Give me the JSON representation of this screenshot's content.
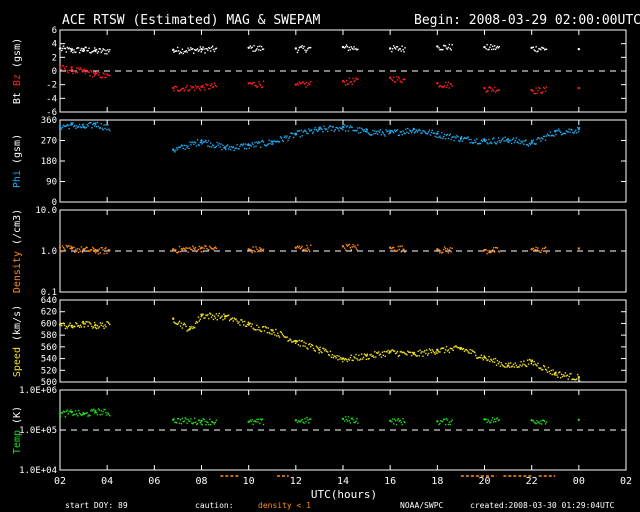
{
  "header": {
    "title": "ACE RTSW (Estimated) MAG & SWEPAM",
    "begin": "Begin: 2008-03-29 02:00:00UTC"
  },
  "footer": {
    "start_doy_label": "start DOY:",
    "start_doy": "89",
    "caution_label": "caution:",
    "caution_text": "density < 1",
    "source": "NOAA/SWPC",
    "created": "created:2008-03-30 01:29:04UTC"
  },
  "colors": {
    "bt": "#ffffff",
    "bz": "#ff2020",
    "phi": "#22aaee",
    "density": "#ff8c1a",
    "speed": "#f0e020",
    "temp": "#20dd20",
    "frame": "#ffffff",
    "background": "#000000"
  },
  "chart_data": [
    {
      "type": "scatter",
      "ylabel_parts": [
        {
          "text": "Bt",
          "color": "#ffffff"
        },
        {
          "text": "Bz",
          "color": "#ff2020"
        },
        {
          "text": "(gsm)",
          "color": "#ffffff"
        }
      ],
      "ylim": [
        -6,
        6
      ],
      "yticks": [
        "6",
        "4",
        "2",
        "0",
        "-2",
        "-4",
        "-6"
      ],
      "ytick_values": [
        6,
        4,
        2,
        0,
        -2,
        -4,
        -6
      ],
      "dashed_y": 0,
      "series": [
        {
          "name": "Bt",
          "color": "#ffffff",
          "x": [
            2.0,
            2.5,
            3.0,
            3.5,
            6.8,
            8,
            10,
            12,
            14,
            16,
            18,
            20,
            22,
            24
          ],
          "y": [
            3.3,
            3.1,
            3.2,
            3.0,
            3.1,
            3.2,
            3.4,
            3.3,
            3.5,
            3.3,
            3.6,
            3.5,
            3.4,
            3.2
          ]
        },
        {
          "name": "Bz",
          "color": "#ff2020",
          "x": [
            2.0,
            2.5,
            3.0,
            3.5,
            6.8,
            8,
            10,
            12,
            14,
            16,
            18,
            20,
            22,
            24
          ],
          "y": [
            0.5,
            0.2,
            0.0,
            -0.4,
            -2.5,
            -2.3,
            -1.8,
            -2.0,
            -1.5,
            -1.0,
            -1.8,
            -2.5,
            -2.8,
            -2.5
          ]
        }
      ]
    },
    {
      "type": "scatter",
      "ylabel_parts": [
        {
          "text": "Phi",
          "color": "#22aaee"
        },
        {
          "text": "(gsm)",
          "color": "#ffffff"
        }
      ],
      "ylim": [
        0,
        360
      ],
      "yticks": [
        "360",
        "270",
        "180",
        "90",
        "0"
      ],
      "ytick_values": [
        360,
        270,
        180,
        90,
        0
      ],
      "series": [
        {
          "name": "Phi",
          "color": "#22aaee",
          "x": [
            2.0,
            2.5,
            3.0,
            3.5,
            6.8,
            8,
            9,
            10,
            11,
            12,
            13,
            14,
            15,
            16,
            17,
            18,
            19,
            20,
            21,
            22,
            23,
            24
          ],
          "y": [
            335,
            340,
            330,
            345,
            230,
            270,
            240,
            250,
            265,
            300,
            320,
            330,
            310,
            305,
            320,
            300,
            280,
            270,
            275,
            260,
            310,
            320
          ]
        }
      ]
    },
    {
      "type": "scatter",
      "ylabel_parts": [
        {
          "text": "Density",
          "color": "#ff8c1a"
        },
        {
          "text": "(/cm3)",
          "color": "#ffffff"
        }
      ],
      "yscale": "log",
      "ylim": [
        0.1,
        10
      ],
      "yticks": [
        "10.0",
        "1.0",
        "0.1"
      ],
      "ytick_values": [
        10,
        1,
        0.1
      ],
      "dashed_y": 1,
      "series": [
        {
          "name": "Density",
          "color": "#ff8c1a",
          "x": [
            2.0,
            2.5,
            3.0,
            3.5,
            6.8,
            8,
            10,
            12,
            14,
            16,
            18,
            20,
            22,
            24
          ],
          "y": [
            1.2,
            1.15,
            1.1,
            1.05,
            1.1,
            1.2,
            1.1,
            1.2,
            1.3,
            1.2,
            1.1,
            1.05,
            1.1,
            1.15
          ]
        }
      ]
    },
    {
      "type": "scatter",
      "ylabel_parts": [
        {
          "text": "Speed",
          "color": "#f0e020"
        },
        {
          "text": "(km/s)",
          "color": "#ffffff"
        }
      ],
      "ylim": [
        500,
        640
      ],
      "yticks": [
        "640",
        "620",
        "600",
        "580",
        "560",
        "540",
        "520",
        "500"
      ],
      "ytick_values": [
        640,
        620,
        600,
        580,
        560,
        540,
        520,
        500
      ],
      "series": [
        {
          "name": "Speed",
          "color": "#f0e020",
          "x": [
            2.0,
            2.5,
            3.0,
            3.5,
            6.8,
            7.5,
            8,
            9,
            10,
            11,
            12,
            13,
            14,
            15,
            16,
            17,
            18,
            19,
            20,
            21,
            22,
            23,
            24
          ],
          "y": [
            598,
            596,
            600,
            597,
            608,
            590,
            615,
            612,
            598,
            588,
            570,
            555,
            540,
            545,
            552,
            548,
            555,
            558,
            542,
            528,
            535,
            515,
            508
          ]
        }
      ]
    },
    {
      "type": "scatter",
      "ylabel_parts": [
        {
          "text": "Temp",
          "color": "#20dd20"
        },
        {
          "text": "(K)",
          "color": "#ffffff"
        }
      ],
      "yscale": "log",
      "ylim": [
        10000,
        1000000
      ],
      "yticks": [
        "1.0E+06",
        "1.0E+05",
        "1.0E+04"
      ],
      "ytick_values": [
        1000000,
        100000,
        10000
      ],
      "dashed_y": 100000,
      "series": [
        {
          "name": "Temp",
          "color": "#20dd20",
          "x": [
            2.0,
            2.5,
            3.0,
            3.5,
            6.8,
            8,
            10,
            12,
            14,
            16,
            18,
            20,
            22,
            24
          ],
          "y": [
            260000,
            280000,
            250000,
            300000,
            180000,
            170000,
            160000,
            175000,
            190000,
            170000,
            165000,
            185000,
            175000,
            180000
          ]
        }
      ]
    }
  ],
  "xaxis": {
    "label": "UTC(hours)",
    "ticks": [
      "02",
      "04",
      "06",
      "08",
      "10",
      "12",
      "14",
      "16",
      "18",
      "20",
      "22",
      "00",
      "02"
    ],
    "tick_values": [
      2,
      4,
      6,
      8,
      10,
      12,
      14,
      16,
      18,
      20,
      22,
      24,
      26
    ],
    "xlim": [
      2,
      26
    ]
  }
}
